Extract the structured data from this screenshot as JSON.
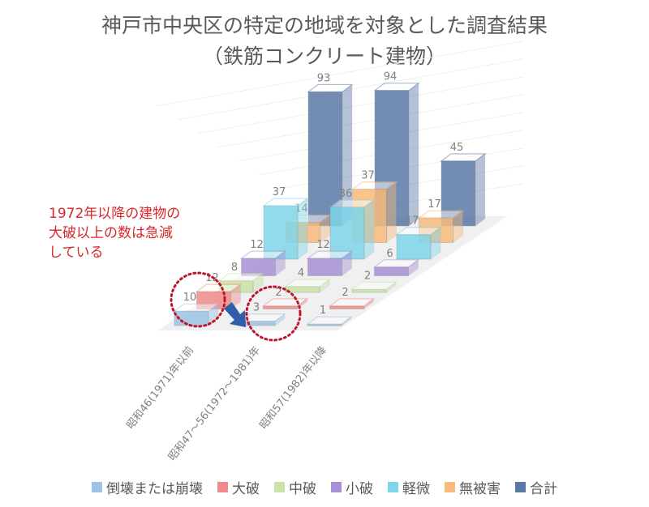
{
  "chart_data": {
    "type": "bar",
    "title": "神戸市中央区の特定の地域を対象とした調査結果",
    "subtitle": "（鉄筋コンクリート建物）",
    "categories": [
      "昭和46(1971)年以前",
      "昭和47～56(1972～1981)年",
      "昭和57(1982)年以降"
    ],
    "series": [
      {
        "name": "倒壊または崩壊",
        "values": [
          10,
          3,
          1
        ],
        "color": "#9dc3e6"
      },
      {
        "name": "大破",
        "values": [
          12,
          2,
          2
        ],
        "color": "#f08a8a"
      },
      {
        "name": "中破",
        "values": [
          8,
          4,
          2
        ],
        "color": "#c9e4a6"
      },
      {
        "name": "小破",
        "values": [
          12,
          12,
          6
        ],
        "color": "#a890d6"
      },
      {
        "name": "軽微",
        "values": [
          37,
          36,
          17
        ],
        "color": "#7fd6ea"
      },
      {
        "name": "無被害",
        "values": [
          14,
          37,
          17
        ],
        "color": "#f8bb7c"
      },
      {
        "name": "合計",
        "values": [
          93,
          94,
          45
        ],
        "color": "#5a78a6"
      }
    ],
    "legend_position": "bottom",
    "grid": true,
    "style": "3d-bar",
    "annotation": [
      "1972年以降の建物の",
      "大破以上の数は急減",
      "している"
    ]
  }
}
